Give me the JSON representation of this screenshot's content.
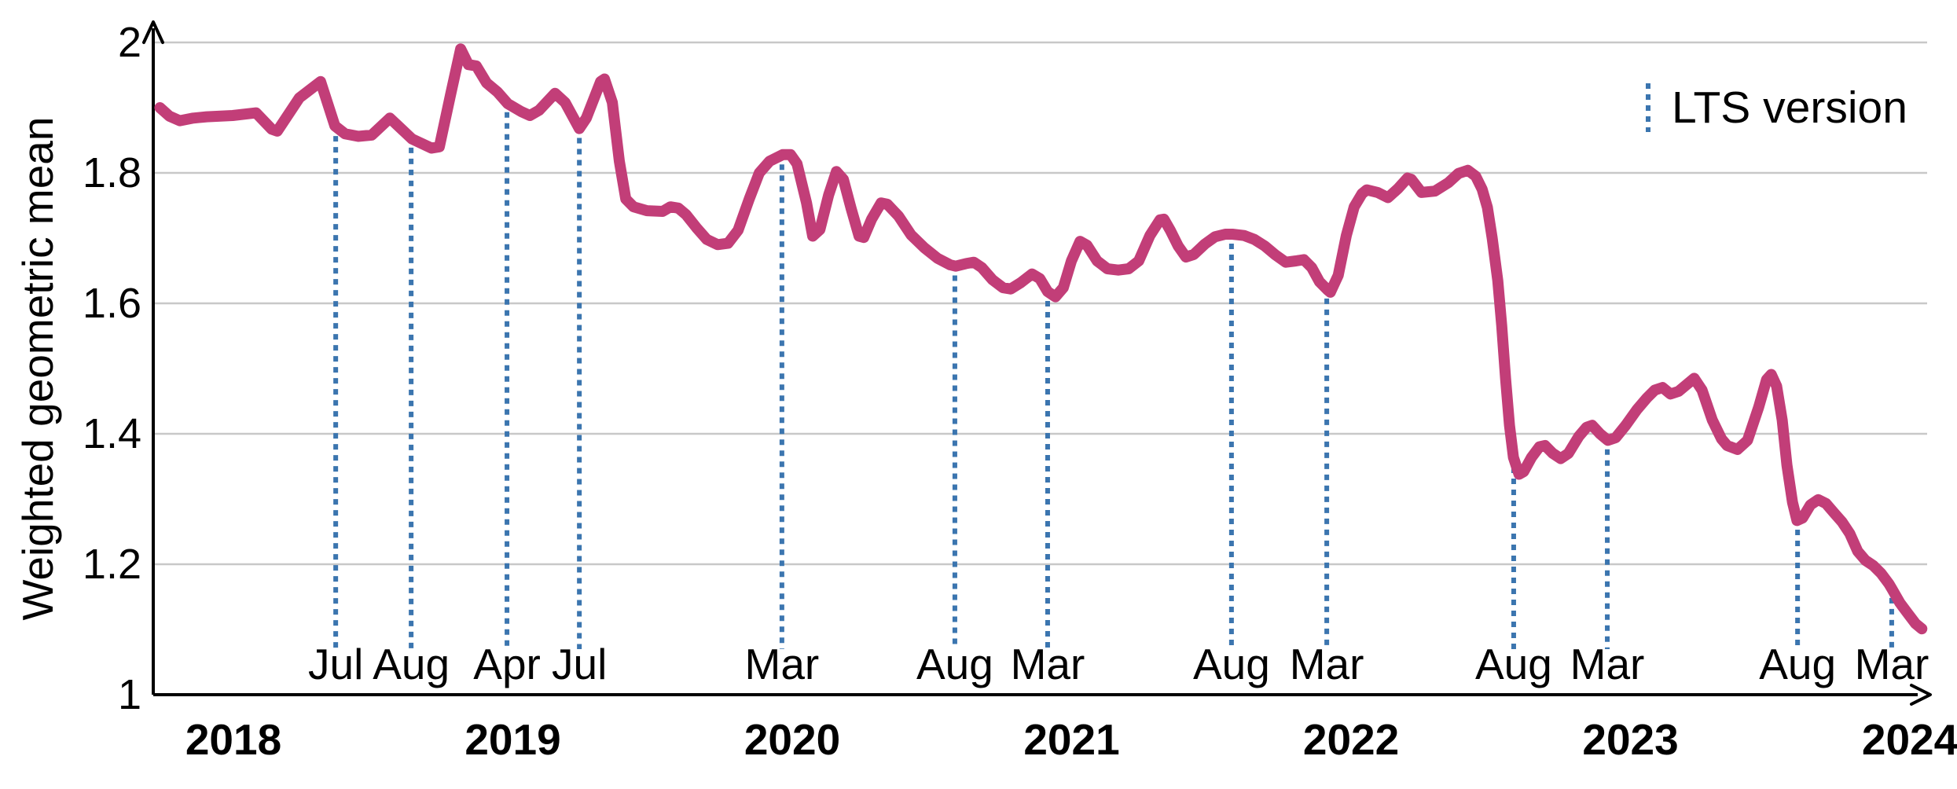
{
  "chart_data": {
    "type": "line",
    "title": "",
    "xlabel": "",
    "ylabel": "Weighted geometric mean",
    "xlim": [
      2017.713,
      2024.073
    ],
    "ylim": [
      1,
      2
    ],
    "grid": "horizontal",
    "yticks": [
      {
        "v": 2.0,
        "label": "2"
      },
      {
        "v": 1.8,
        "label": "1.8"
      },
      {
        "v": 1.6,
        "label": "1.6"
      },
      {
        "v": 1.4,
        "label": "1.4"
      },
      {
        "v": 1.2,
        "label": "1.2"
      },
      {
        "v": 1.0,
        "label": "1"
      }
    ],
    "year_labels": [
      {
        "label": "2018",
        "t": 2018
      },
      {
        "label": "2019",
        "t": 2019
      },
      {
        "label": "2020",
        "t": 2020
      },
      {
        "label": "2021",
        "t": 2021
      },
      {
        "label": "2022",
        "t": 2022
      },
      {
        "label": "2023",
        "t": 2023
      },
      {
        "label": "2024",
        "t": 2024
      }
    ],
    "legend": {
      "label": "LTS version",
      "position": "top-right",
      "symbol": "dotted-vertical-line"
    },
    "lts_versions": [
      {
        "label": "Jul",
        "t": 2018.366
      },
      {
        "label": "Aug",
        "t": 2018.636
      },
      {
        "label": "Apr",
        "t": 2018.979
      },
      {
        "label": "Jul",
        "t": 2019.238
      },
      {
        "label": "Mar",
        "t": 2019.963
      },
      {
        "label": "Aug",
        "t": 2020.582
      },
      {
        "label": "Mar",
        "t": 2020.914
      },
      {
        "label": "Aug",
        "t": 2021.572
      },
      {
        "label": "Mar",
        "t": 2021.913
      },
      {
        "label": "Aug",
        "t": 2022.582
      },
      {
        "label": "Mar",
        "t": 2022.917
      },
      {
        "label": "Aug",
        "t": 2023.598
      },
      {
        "label": "Mar",
        "t": 2023.935
      }
    ],
    "series": [
      {
        "name": "Weighted geometric mean",
        "color": "#C23E78",
        "points": [
          [
            2017.737,
            1.9
          ],
          [
            2017.771,
            1.887
          ],
          [
            2017.808,
            1.88
          ],
          [
            2017.856,
            1.884
          ],
          [
            2017.904,
            1.886
          ],
          [
            2017.997,
            1.888
          ],
          [
            2018.081,
            1.892
          ],
          [
            2018.137,
            1.867
          ],
          [
            2018.157,
            1.864
          ],
          [
            2018.236,
            1.915
          ],
          [
            2018.312,
            1.94
          ],
          [
            2018.363,
            1.872
          ],
          [
            2018.399,
            1.86
          ],
          [
            2018.447,
            1.856
          ],
          [
            2018.495,
            1.858
          ],
          [
            2018.56,
            1.884
          ],
          [
            2018.639,
            1.852
          ],
          [
            2018.709,
            1.838
          ],
          [
            2018.737,
            1.84
          ],
          [
            2018.777,
            1.92
          ],
          [
            2018.813,
            1.99
          ],
          [
            2018.841,
            1.966
          ],
          [
            2018.869,
            1.964
          ],
          [
            2018.906,
            1.938
          ],
          [
            2018.945,
            1.924
          ],
          [
            2018.982,
            1.906
          ],
          [
            2019.03,
            1.894
          ],
          [
            2019.061,
            1.888
          ],
          [
            2019.094,
            1.896
          ],
          [
            2019.151,
            1.922
          ],
          [
            2019.187,
            1.908
          ],
          [
            2019.238,
            1.868
          ],
          [
            2019.263,
            1.884
          ],
          [
            2019.314,
            1.94
          ],
          [
            2019.328,
            1.944
          ],
          [
            2019.356,
            1.908
          ],
          [
            2019.381,
            1.818
          ],
          [
            2019.404,
            1.76
          ],
          [
            2019.432,
            1.748
          ],
          [
            2019.48,
            1.742
          ],
          [
            2019.536,
            1.741
          ],
          [
            2019.564,
            1.748
          ],
          [
            2019.592,
            1.746
          ],
          [
            2019.62,
            1.736
          ],
          [
            2019.657,
            1.716
          ],
          [
            2019.694,
            1.698
          ],
          [
            2019.733,
            1.69
          ],
          [
            2019.77,
            1.692
          ],
          [
            2019.806,
            1.712
          ],
          [
            2019.846,
            1.76
          ],
          [
            2019.882,
            1.8
          ],
          [
            2019.919,
            1.818
          ],
          [
            2019.966,
            1.828
          ],
          [
            2019.994,
            1.828
          ],
          [
            2020.017,
            1.814
          ],
          [
            2020.051,
            1.754
          ],
          [
            2020.073,
            1.703
          ],
          [
            2020.099,
            1.713
          ],
          [
            2020.13,
            1.766
          ],
          [
            2020.158,
            1.802
          ],
          [
            2020.183,
            1.79
          ],
          [
            2020.211,
            1.745
          ],
          [
            2020.239,
            1.703
          ],
          [
            2020.256,
            1.701
          ],
          [
            2020.284,
            1.729
          ],
          [
            2020.318,
            1.754
          ],
          [
            2020.34,
            1.752
          ],
          [
            2020.38,
            1.734
          ],
          [
            2020.425,
            1.705
          ],
          [
            2020.473,
            1.685
          ],
          [
            2020.52,
            1.669
          ],
          [
            2020.565,
            1.659
          ],
          [
            2020.585,
            1.657
          ],
          [
            2020.622,
            1.661
          ],
          [
            2020.65,
            1.663
          ],
          [
            2020.678,
            1.655
          ],
          [
            2020.717,
            1.636
          ],
          [
            2020.754,
            1.624
          ],
          [
            2020.782,
            1.622
          ],
          [
            2020.819,
            1.632
          ],
          [
            2020.858,
            1.645
          ],
          [
            2020.886,
            1.638
          ],
          [
            2020.914,
            1.618
          ],
          [
            2020.942,
            1.61
          ],
          [
            2020.97,
            1.624
          ],
          [
            2020.999,
            1.665
          ],
          [
            2021.03,
            1.695
          ],
          [
            2021.055,
            1.689
          ],
          [
            2021.091,
            1.665
          ],
          [
            2021.128,
            1.653
          ],
          [
            2021.167,
            1.651
          ],
          [
            2021.204,
            1.653
          ],
          [
            2021.24,
            1.665
          ],
          [
            2021.28,
            1.704
          ],
          [
            2021.316,
            1.728
          ],
          [
            2021.33,
            1.729
          ],
          [
            2021.353,
            1.712
          ],
          [
            2021.381,
            1.688
          ],
          [
            2021.409,
            1.671
          ],
          [
            2021.437,
            1.675
          ],
          [
            2021.477,
            1.691
          ],
          [
            2021.513,
            1.702
          ],
          [
            2021.55,
            1.706
          ],
          [
            2021.575,
            1.706
          ],
          [
            2021.617,
            1.704
          ],
          [
            2021.654,
            1.698
          ],
          [
            2021.691,
            1.688
          ],
          [
            2021.73,
            1.674
          ],
          [
            2021.766,
            1.663
          ],
          [
            2021.803,
            1.665
          ],
          [
            2021.831,
            1.667
          ],
          [
            2021.859,
            1.655
          ],
          [
            2021.887,
            1.633
          ],
          [
            2021.915,
            1.621
          ],
          [
            2021.926,
            1.617
          ],
          [
            2021.954,
            1.643
          ],
          [
            2021.983,
            1.704
          ],
          [
            2022.011,
            1.748
          ],
          [
            2022.039,
            1.768
          ],
          [
            2022.056,
            1.774
          ],
          [
            2022.095,
            1.77
          ],
          [
            2022.132,
            1.762
          ],
          [
            2022.168,
            1.776
          ],
          [
            2022.202,
            1.792
          ],
          [
            2022.216,
            1.79
          ],
          [
            2022.252,
            1.77
          ],
          [
            2022.3,
            1.772
          ],
          [
            2022.348,
            1.785
          ],
          [
            2022.384,
            1.799
          ],
          [
            2022.418,
            1.804
          ],
          [
            2022.446,
            1.795
          ],
          [
            2022.469,
            1.775
          ],
          [
            2022.488,
            1.747
          ],
          [
            2022.505,
            1.7
          ],
          [
            2022.525,
            1.635
          ],
          [
            2022.539,
            1.566
          ],
          [
            2022.553,
            1.485
          ],
          [
            2022.567,
            1.413
          ],
          [
            2022.581,
            1.364
          ],
          [
            2022.601,
            1.338
          ],
          [
            2022.618,
            1.342
          ],
          [
            2022.646,
            1.364
          ],
          [
            2022.674,
            1.38
          ],
          [
            2022.694,
            1.382
          ],
          [
            2022.722,
            1.37
          ],
          [
            2022.75,
            1.362
          ],
          [
            2022.778,
            1.37
          ],
          [
            2022.815,
            1.396
          ],
          [
            2022.843,
            1.41
          ],
          [
            2022.863,
            1.413
          ],
          [
            2022.891,
            1.4
          ],
          [
            2022.919,
            1.39
          ],
          [
            2022.947,
            1.394
          ],
          [
            2022.983,
            1.413
          ],
          [
            2023.023,
            1.437
          ],
          [
            2023.059,
            1.455
          ],
          [
            2023.087,
            1.467
          ],
          [
            2023.115,
            1.471
          ],
          [
            2023.143,
            1.461
          ],
          [
            2023.172,
            1.465
          ],
          [
            2023.2,
            1.475
          ],
          [
            2023.228,
            1.485
          ],
          [
            2023.256,
            1.467
          ],
          [
            2023.293,
            1.421
          ],
          [
            2023.326,
            1.392
          ],
          [
            2023.346,
            1.382
          ],
          [
            2023.383,
            1.376
          ],
          [
            2023.419,
            1.39
          ],
          [
            2023.459,
            1.441
          ],
          [
            2023.487,
            1.483
          ],
          [
            2023.504,
            1.491
          ],
          [
            2023.523,
            1.473
          ],
          [
            2023.543,
            1.421
          ],
          [
            2023.56,
            1.352
          ],
          [
            2023.58,
            1.295
          ],
          [
            2023.596,
            1.267
          ],
          [
            2023.616,
            1.271
          ],
          [
            2023.644,
            1.291
          ],
          [
            2023.672,
            1.299
          ],
          [
            2023.7,
            1.293
          ],
          [
            2023.728,
            1.279
          ],
          [
            2023.757,
            1.265
          ],
          [
            2023.785,
            1.247
          ],
          [
            2023.813,
            1.22
          ],
          [
            2023.841,
            1.206
          ],
          [
            2023.869,
            1.198
          ],
          [
            2023.897,
            1.186
          ],
          [
            2023.925,
            1.17
          ],
          [
            2023.936,
            1.162
          ],
          [
            2023.964,
            1.141
          ],
          [
            2023.992,
            1.125
          ],
          [
            2024.02,
            1.109
          ],
          [
            2024.043,
            1.101
          ]
        ]
      }
    ]
  },
  "colors": {
    "line": "#C23E78",
    "lts_line": "#3B75AF",
    "month_text": "#3B75AF",
    "grid": "#C8C8C8",
    "axis": "#000000",
    "text": "#000000",
    "background": "#FFFFFF"
  },
  "layout_note": ""
}
